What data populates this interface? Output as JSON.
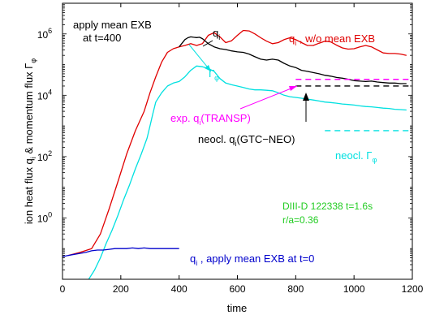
{
  "chart_data": {
    "type": "line",
    "title": "",
    "xlabel": "time",
    "ylabel": "ion heat flux q_i & momentum flux Γ_φ",
    "y_scale": "log",
    "xlim": [
      0,
      1200
    ],
    "ylim": [
      0.01,
      10000000
    ],
    "x_ticks": [
      0,
      200,
      400,
      600,
      800,
      1000,
      1200
    ],
    "x_tick_labels": [
      "0",
      "200",
      "400",
      "600",
      "800",
      "1000",
      "1200"
    ],
    "y_ticks": [
      1,
      100,
      10000,
      1000000
    ],
    "y_tick_labels": [
      {
        "base": "10",
        "exp": "0"
      },
      {
        "base": "10",
        "exp": "2"
      },
      {
        "base": "10",
        "exp": "4"
      },
      {
        "base": "10",
        "exp": "6"
      }
    ],
    "series": [
      {
        "name": "q_i, w/o mean EXB",
        "color": "#e00000",
        "points": [
          [
            20,
            0.06
          ],
          [
            60,
            0.075
          ],
          [
            100,
            0.1
          ],
          [
            130,
            0.3
          ],
          [
            160,
            2
          ],
          [
            190,
            15
          ],
          [
            220,
            120
          ],
          [
            250,
            700
          ],
          [
            280,
            3000
          ],
          [
            300,
            12000
          ],
          [
            320,
            40000
          ],
          [
            340,
            120000
          ],
          [
            360,
            250000
          ],
          [
            380,
            330000
          ],
          [
            400,
            380000
          ],
          [
            420,
            420000
          ],
          [
            440,
            480000
          ],
          [
            460,
            420000
          ],
          [
            480,
            480000
          ],
          [
            500,
            900000
          ],
          [
            520,
            1100000
          ],
          [
            540,
            800000
          ],
          [
            560,
            520000
          ],
          [
            580,
            600000
          ],
          [
            600,
            900000
          ],
          [
            620,
            1300000
          ],
          [
            640,
            1250000
          ],
          [
            660,
            1000000
          ],
          [
            680,
            750000
          ],
          [
            700,
            580000
          ],
          [
            720,
            480000
          ],
          [
            740,
            520000
          ],
          [
            760,
            650000
          ],
          [
            780,
            750000
          ],
          [
            800,
            650000
          ],
          [
            820,
            520000
          ],
          [
            840,
            420000
          ],
          [
            860,
            420000
          ],
          [
            880,
            500000
          ],
          [
            900,
            580000
          ],
          [
            920,
            550000
          ],
          [
            940,
            430000
          ],
          [
            960,
            350000
          ],
          [
            980,
            320000
          ],
          [
            1000,
            330000
          ],
          [
            1020,
            380000
          ],
          [
            1040,
            420000
          ],
          [
            1060,
            380000
          ],
          [
            1080,
            300000
          ],
          [
            1100,
            240000
          ],
          [
            1120,
            230000
          ],
          [
            1140,
            230000
          ],
          [
            1160,
            220000
          ],
          [
            1180,
            200000
          ]
        ]
      },
      {
        "name": "q_i, apply mean EXB at t=400",
        "color": "#000000",
        "points": [
          [
            400,
            380000
          ],
          [
            410,
            500000
          ],
          [
            420,
            650000
          ],
          [
            430,
            750000
          ],
          [
            440,
            800000
          ],
          [
            450,
            780000
          ],
          [
            460,
            760000
          ],
          [
            470,
            780000
          ],
          [
            480,
            700000
          ],
          [
            500,
            480000
          ],
          [
            520,
            380000
          ],
          [
            540,
            330000
          ],
          [
            560,
            310000
          ],
          [
            580,
            280000
          ],
          [
            600,
            260000
          ],
          [
            620,
            250000
          ],
          [
            640,
            220000
          ],
          [
            660,
            180000
          ],
          [
            680,
            150000
          ],
          [
            700,
            140000
          ],
          [
            720,
            150000
          ],
          [
            740,
            140000
          ],
          [
            760,
            110000
          ],
          [
            780,
            90000
          ],
          [
            800,
            80000
          ],
          [
            820,
            65000
          ],
          [
            840,
            60000
          ],
          [
            860,
            55000
          ],
          [
            880,
            50000
          ],
          [
            900,
            45000
          ],
          [
            920,
            42000
          ],
          [
            940,
            38000
          ],
          [
            960,
            36000
          ],
          [
            980,
            33000
          ],
          [
            1000,
            30000
          ],
          [
            1020,
            29000
          ],
          [
            1040,
            28000
          ],
          [
            1060,
            29000
          ],
          [
            1080,
            27000
          ],
          [
            1100,
            26000
          ],
          [
            1120,
            25000
          ],
          [
            1140,
            25000
          ],
          [
            1160,
            24000
          ],
          [
            1180,
            24000
          ]
        ]
      },
      {
        "name": "Γ_φ",
        "color": "#00e0e0",
        "points": [
          [
            90,
            0.01
          ],
          [
            110,
            0.02
          ],
          [
            130,
            0.05
          ],
          [
            150,
            0.15
          ],
          [
            170,
            0.4
          ],
          [
            190,
            1.2
          ],
          [
            210,
            4
          ],
          [
            230,
            12
          ],
          [
            250,
            40
          ],
          [
            270,
            120
          ],
          [
            290,
            400
          ],
          [
            300,
            1000
          ],
          [
            310,
            2500
          ],
          [
            320,
            6000
          ],
          [
            340,
            12000
          ],
          [
            360,
            20000
          ],
          [
            380,
            25000
          ],
          [
            400,
            28000
          ],
          [
            420,
            40000
          ],
          [
            440,
            65000
          ],
          [
            460,
            90000
          ],
          [
            480,
            85000
          ],
          [
            500,
            75000
          ],
          [
            520,
            60000
          ],
          [
            540,
            35000
          ],
          [
            560,
            25000
          ],
          [
            580,
            22000
          ],
          [
            600,
            20000
          ],
          [
            620,
            18000
          ],
          [
            640,
            16000
          ],
          [
            660,
            15000
          ],
          [
            680,
            15000
          ],
          [
            700,
            14500
          ],
          [
            720,
            14000
          ],
          [
            740,
            12000
          ],
          [
            760,
            10000
          ],
          [
            780,
            9000
          ],
          [
            800,
            8500
          ],
          [
            820,
            8000
          ],
          [
            840,
            7500
          ],
          [
            860,
            7000
          ],
          [
            880,
            6500
          ],
          [
            900,
            6000
          ],
          [
            920,
            5800
          ],
          [
            940,
            5500
          ],
          [
            960,
            5200
          ],
          [
            980,
            5000
          ],
          [
            1000,
            4800
          ],
          [
            1020,
            4500
          ],
          [
            1040,
            4300
          ],
          [
            1060,
            4200
          ],
          [
            1080,
            4000
          ],
          [
            1100,
            3800
          ],
          [
            1120,
            3700
          ],
          [
            1140,
            3500
          ],
          [
            1160,
            3400
          ],
          [
            1180,
            3300
          ]
        ]
      },
      {
        "name": "q_i, apply mean EXB at t=0",
        "color": "#0000cc",
        "points": [
          [
            0,
            0.055
          ],
          [
            20,
            0.06
          ],
          [
            40,
            0.065
          ],
          [
            60,
            0.07
          ],
          [
            80,
            0.075
          ],
          [
            100,
            0.085
          ],
          [
            120,
            0.09
          ],
          [
            140,
            0.09
          ],
          [
            160,
            0.095
          ],
          [
            180,
            0.1
          ],
          [
            200,
            0.1
          ],
          [
            220,
            0.1
          ],
          [
            240,
            0.105
          ],
          [
            260,
            0.1
          ],
          [
            280,
            0.105
          ],
          [
            300,
            0.1
          ],
          [
            320,
            0.1
          ],
          [
            340,
            0.1
          ],
          [
            360,
            0.1
          ],
          [
            380,
            0.1
          ],
          [
            400,
            0.1
          ]
        ]
      }
    ],
    "reference_lines": [
      {
        "label": "exp. q_i(TRANSP)",
        "color": "#ff00ff",
        "y": 33000,
        "x": [
          800,
          1200
        ]
      },
      {
        "label": "neocl. q_i(GTC-NEO)",
        "color": "#000000",
        "y": 20000,
        "x": [
          800,
          1200
        ]
      },
      {
        "label": "neocl. Γ_φ",
        "color": "#00e0e0",
        "y": 700,
        "x": [
          900,
          1200
        ]
      }
    ],
    "annotations": {
      "apply_mean_exb": "apply mean EXB",
      "at_t400": "at t=400",
      "qi_label": "q",
      "qi_sub": "i",
      "gamma_label": "Γ",
      "gamma_sub": "φ",
      "red_label": {
        "pre": "q",
        "sub": "i",
        "post": " , w/o mean EXB"
      },
      "exp_label": {
        "pre": "exp. q",
        "sub": "i",
        "post": "(TRANSP)"
      },
      "neo_q_label": {
        "pre": "neocl. q",
        "sub": "i",
        "post": "(GTC−NEO)"
      },
      "neo_gamma_label": {
        "pre": "neocl. Γ",
        "sub": "φ",
        "post": ""
      },
      "shot_line1": "DIII-D 122338 t=1.6s",
      "shot_line2": "r/a=0.36",
      "blue_label": {
        "pre": "q",
        "sub": "i",
        "post": " , apply mean EXB at t=0"
      }
    },
    "grid": false,
    "legend": "none"
  }
}
